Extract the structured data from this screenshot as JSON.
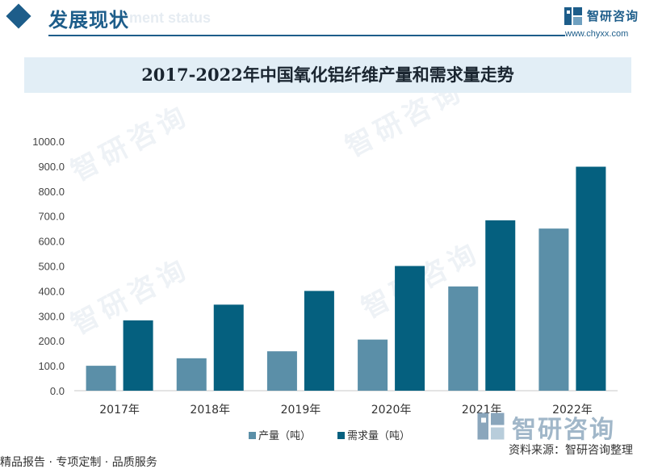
{
  "header": {
    "title": "发展现状",
    "watermark_text": "ment status"
  },
  "brand": {
    "name": "智研咨询",
    "url": "www.chyxx.com",
    "watermark": "智研咨询"
  },
  "colors": {
    "accent": "#1d5d8a",
    "series_production": "#5b8fa8",
    "series_demand": "#05607f",
    "title_band": "#e2eef6"
  },
  "footer": {
    "left_text": "精品报告 · 专项定制 · 品质服务",
    "source_label": "资料来源：",
    "source_value": "智研咨询整理"
  },
  "chart_data": {
    "type": "bar",
    "title": "2017-2022年中国氧化铝纤维产量和需求量走势",
    "categories": [
      "2017年",
      "2018年",
      "2019年",
      "2020年",
      "2021年",
      "2022年"
    ],
    "series": [
      {
        "name": "产量（吨）",
        "values": [
          100,
          130,
          158,
          205,
          418,
          650
        ]
      },
      {
        "name": "需求量（吨）",
        "values": [
          282,
          345,
          400,
          500,
          683,
          898
        ]
      }
    ],
    "ylim": [
      0,
      1000
    ],
    "yticks": [
      "0.0",
      "100.0",
      "200.0",
      "300.0",
      "400.0",
      "500.0",
      "600.0",
      "700.0",
      "800.0",
      "900.0",
      "1000.0"
    ],
    "grid": false,
    "legend_position": "bottom"
  }
}
